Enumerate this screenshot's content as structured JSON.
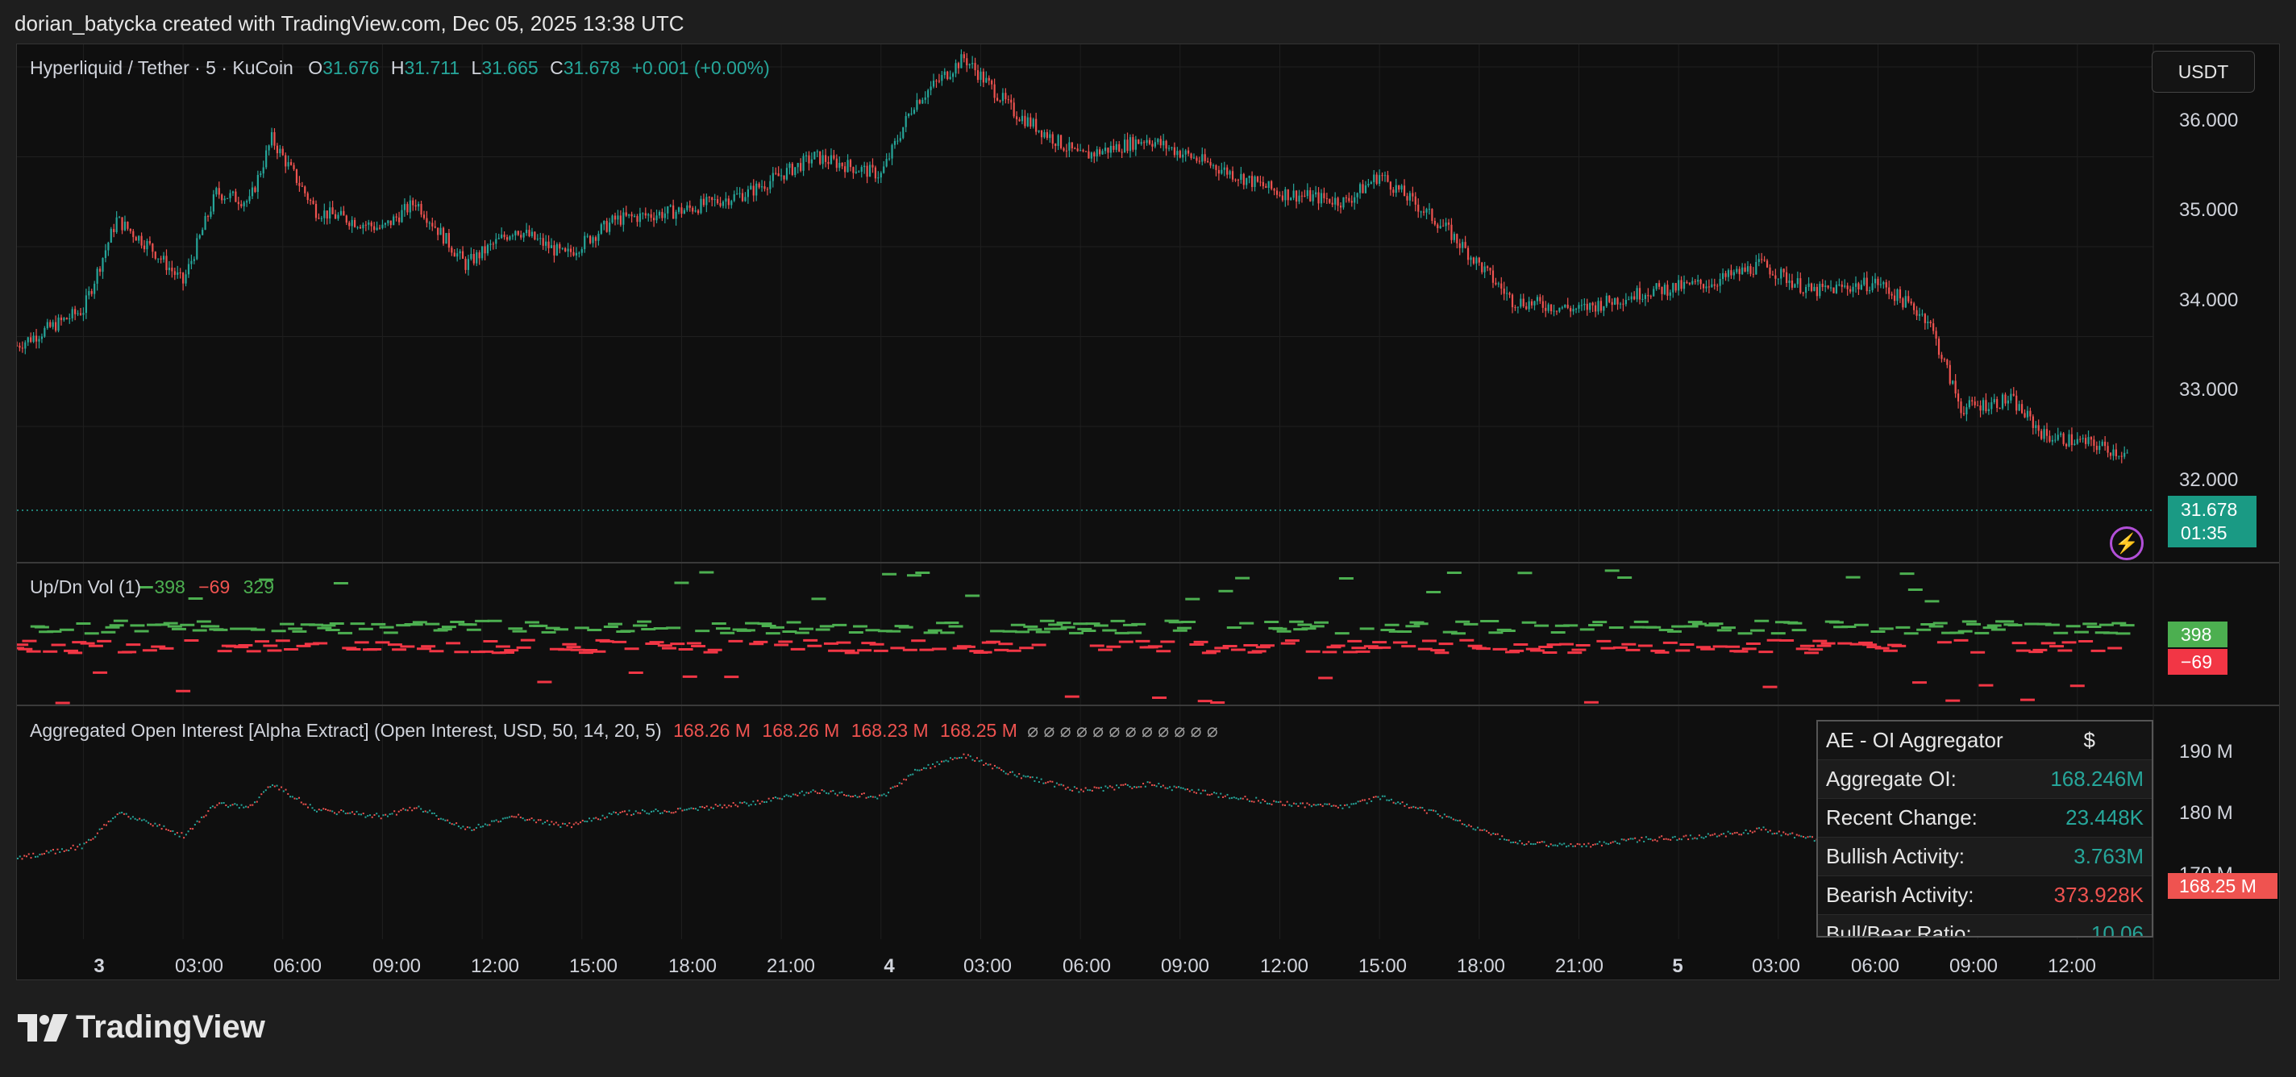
{
  "header": {
    "attribution": "dorian_batycka created with TradingView.com, Dec 05, 2025 13:38 UTC"
  },
  "symbol": {
    "title": "Hyperliquid / Tether · 5 · KuCoin",
    "o_label": "O",
    "o": "31.676",
    "h_label": "H",
    "h": "31.711",
    "l_label": "L",
    "l": "31.665",
    "c_label": "C",
    "c": "31.678",
    "change": "+0.001 (+0.00%)"
  },
  "currency_button": "USDT",
  "price_axis": [
    "36.000",
    "35.000",
    "34.000",
    "33.000",
    "32.000"
  ],
  "price_tag": {
    "price": "31.678",
    "countdown": "01:35"
  },
  "volume": {
    "title": "Up/Dn Vol (1)",
    "v1": "398",
    "v2": "−69",
    "v3": "329",
    "tag_up": "398",
    "tag_dn": "−69"
  },
  "oi": {
    "title": "Aggregated Open Interest [Alpha Extract] (Open Interest, USD, 50, 14, 20, 5)",
    "v1": "168.26 M",
    "v2": "168.26 M",
    "v3": "168.23 M",
    "v4": "168.25 M",
    "ghosts": "⌀ ⌀ ⌀ ⌀ ⌀ ⌀ ⌀ ⌀ ⌀ ⌀ ⌀ ⌀",
    "axis": [
      "190 M",
      "180 M",
      "170 M"
    ],
    "tag": "168.25 M"
  },
  "oi_panel": {
    "title": "AE - OI Aggregator",
    "unit": "$",
    "rows": [
      {
        "label": "Aggregate OI:",
        "value": "168.246M",
        "color": "#26a69a"
      },
      {
        "label": "Recent Change:",
        "value": "23.448K",
        "color": "#26a69a"
      },
      {
        "label": "Bullish Activity:",
        "value": "3.763M",
        "color": "#26a69a"
      },
      {
        "label": "Bearish Activity:",
        "value": "373.928K",
        "color": "#ef5350"
      },
      {
        "label": "Bull/Bear Ratio:",
        "value": "10.06",
        "color": "#26a69a"
      }
    ]
  },
  "time_axis": [
    "3",
    "03:00",
    "06:00",
    "09:00",
    "12:00",
    "15:00",
    "18:00",
    "21:00",
    "4",
    "03:00",
    "06:00",
    "09:00",
    "12:00",
    "15:00",
    "18:00",
    "21:00",
    "5",
    "03:00",
    "06:00",
    "09:00",
    "12:00"
  ],
  "brand": "TradingView",
  "colors": {
    "up": "#26a69a",
    "down": "#ef5350",
    "vol_up": "#4caf50",
    "vol_down": "#f23645",
    "background": "#0f0f0f"
  },
  "chart_data": {
    "type": "candlestick",
    "symbol": "Hyperliquid / Tether",
    "interval": "5",
    "ylim": [
      31.3,
      36.3
    ],
    "close_path": [
      [
        "Dec 2 22:00",
        32.9
      ],
      [
        "Dec 3 00:00",
        33.3
      ],
      [
        "Dec 3 01:00",
        34.3
      ],
      [
        "Dec 3 02:00",
        34.0
      ],
      [
        "Dec 3 03:00",
        33.6
      ],
      [
        "Dec 3 04:00",
        34.6
      ],
      [
        "Dec 3 05:00",
        34.5
      ],
      [
        "Dec 3 05:40",
        35.2
      ],
      [
        "Dec 3 07:00",
        34.4
      ],
      [
        "Dec 3 09:00",
        34.2
      ],
      [
        "Dec 3 10:00",
        34.5
      ],
      [
        "Dec 3 11:30",
        33.8
      ],
      [
        "Dec 3 13:00",
        34.2
      ],
      [
        "Dec 3 14:30",
        33.9
      ],
      [
        "Dec 3 16:00",
        34.3
      ],
      [
        "Dec 3 18:00",
        34.4
      ],
      [
        "Dec 3 20:00",
        34.6
      ],
      [
        "Dec 3 22:00",
        35.0
      ],
      [
        "Dec 4 00:00",
        34.8
      ],
      [
        "Dec 4 01:00",
        35.6
      ],
      [
        "Dec 4 02:30",
        36.1
      ],
      [
        "Dec 4 04:00",
        35.5
      ],
      [
        "Dec 4 06:00",
        35.0
      ],
      [
        "Dec 4 08:00",
        35.2
      ],
      [
        "Dec 4 10:00",
        34.9
      ],
      [
        "Dec 4 12:00",
        34.6
      ],
      [
        "Dec 4 14:00",
        34.5
      ],
      [
        "Dec 4 15:00",
        34.8
      ],
      [
        "Dec 4 17:00",
        34.2
      ],
      [
        "Dec 4 19:00",
        33.4
      ],
      [
        "Dec 4 21:00",
        33.3
      ],
      [
        "Dec 4 23:00",
        33.5
      ],
      [
        "Dec 5 01:00",
        33.6
      ],
      [
        "Dec 5 02:30",
        33.8
      ],
      [
        "Dec 5 04:00",
        33.5
      ],
      [
        "Dec 5 06:00",
        33.6
      ],
      [
        "Dec 5 07:30",
        33.2
      ],
      [
        "Dec 5 08:30",
        32.2
      ],
      [
        "Dec 5 10:00",
        32.3
      ],
      [
        "Dec 5 11:00",
        31.9
      ],
      [
        "Dec 5 12:30",
        31.8
      ],
      [
        "Dec 5 13:35",
        31.678
      ]
    ],
    "last": {
      "open": 31.676,
      "high": 31.711,
      "low": 31.665,
      "close": 31.678
    }
  }
}
